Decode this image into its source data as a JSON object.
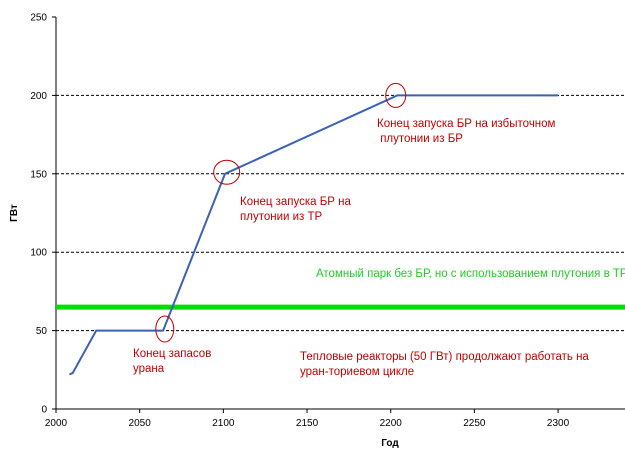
{
  "chart_data": {
    "type": "line",
    "xlabel": "Год",
    "ylabel": "ГВт",
    "xlim": [
      2000,
      2340
    ],
    "ylim": [
      0,
      250
    ],
    "x_ticks": [
      2000,
      2050,
      2100,
      2150,
      2200,
      2250,
      2300
    ],
    "y_ticks": [
      0,
      50,
      100,
      150,
      200,
      250
    ],
    "grid": "horizontal dashed at 50, 100, 150, 200",
    "series": [
      {
        "color": "#3a62b5",
        "x": [
          2008,
          2010,
          2024,
          2064,
          2101,
          2204,
          2300
        ],
        "y": [
          22,
          23,
          50,
          50,
          150,
          200,
          200
        ]
      }
    ],
    "reference_line": {
      "y": 65,
      "color": "#00e000"
    },
    "highlight_circles": [
      {
        "x": 2065,
        "y": 51
      },
      {
        "x": 2102,
        "y": 151
      },
      {
        "x": 2203,
        "y": 200
      }
    ],
    "annotations": {
      "uranium_end": "Конец запасов\nурана",
      "br_on_tr": "Конец запуска БР на\nплутонии из ТР",
      "br_surplus": "Конец запуска БР на избыточном\n плутонии из БР",
      "fleet_without_br": "Атомный парк без БР, но с использованием плутония в ТР",
      "thermal_reactors": "Тепловые реакторы (50 ГВт) продолжают работать на\nуран-ториевом цикле"
    },
    "colors": {
      "annotation_red": "#c00000",
      "annotation_green": "#22cc22",
      "circle": "#c00000"
    }
  }
}
